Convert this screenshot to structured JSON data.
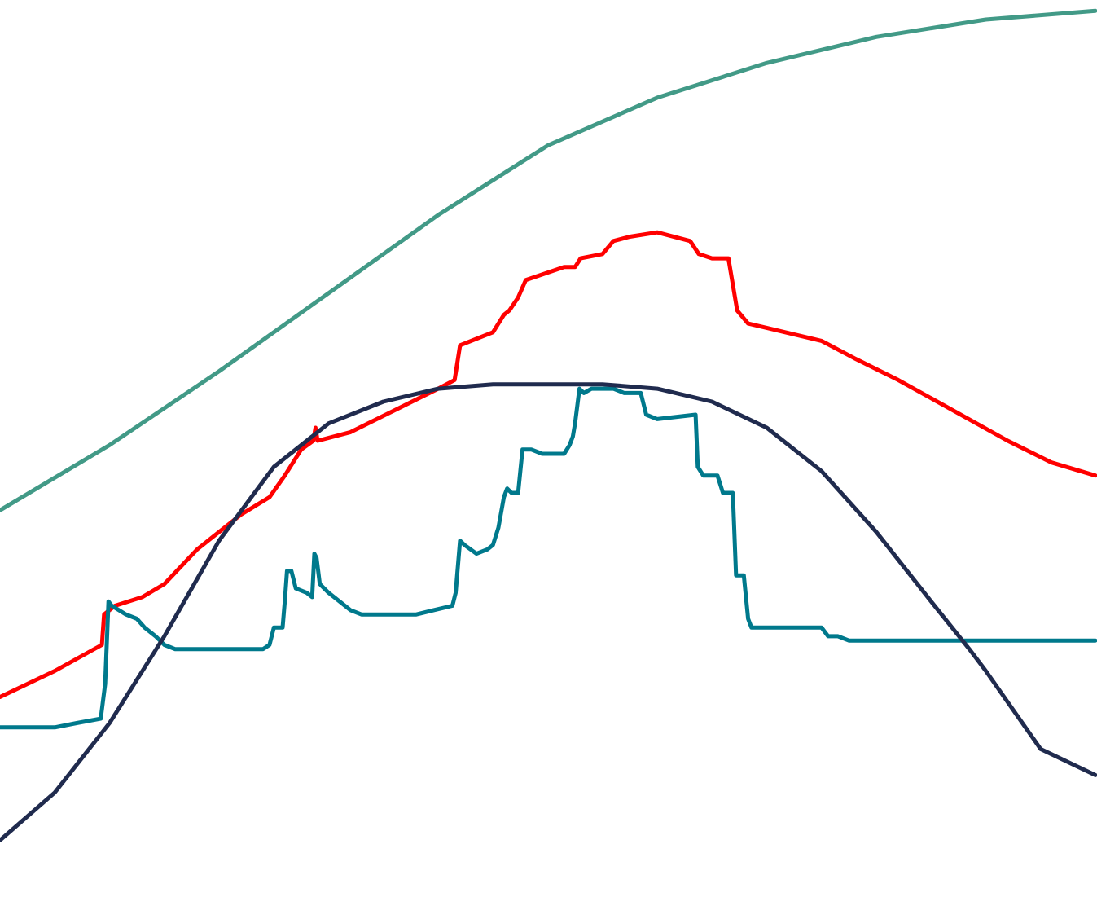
{
  "chart_data": {
    "type": "line",
    "title": "",
    "xlabel": "",
    "ylabel": "",
    "grid": false,
    "legend": "none",
    "xlim": [
      0,
      100
    ],
    "ylim": [
      0,
      100
    ],
    "series": [
      {
        "color": "#429a87",
        "points": [
          [
            0,
            43.5
          ],
          [
            10,
            51
          ],
          [
            20,
            59.5
          ],
          [
            30,
            68.5
          ],
          [
            40,
            77.5
          ],
          [
            50,
            85.5
          ],
          [
            60,
            91
          ],
          [
            70,
            95
          ],
          [
            80,
            98
          ],
          [
            90,
            100
          ],
          [
            100,
            101
          ]
        ]
      },
      {
        "color": "#ff0000",
        "points": [
          [
            0,
            22
          ],
          [
            5,
            25
          ],
          [
            9.3,
            28
          ],
          [
            9.5,
            31.5
          ],
          [
            10.5,
            32.5
          ],
          [
            13,
            33.5
          ],
          [
            15,
            35
          ],
          [
            18,
            39
          ],
          [
            22,
            43
          ],
          [
            24.6,
            45
          ],
          [
            26,
            47.5
          ],
          [
            27.5,
            50.5
          ],
          [
            28.6,
            51.5
          ],
          [
            28.8,
            53
          ],
          [
            29,
            51.5
          ],
          [
            32,
            52.5
          ],
          [
            36,
            55
          ],
          [
            40,
            57.5
          ],
          [
            41.5,
            58.5
          ],
          [
            42,
            62.5
          ],
          [
            45,
            64
          ],
          [
            46,
            66
          ],
          [
            46.5,
            66.5
          ],
          [
            47.3,
            68
          ],
          [
            48,
            70
          ],
          [
            51.5,
            71.5
          ],
          [
            52.5,
            71.5
          ],
          [
            53,
            72.5
          ],
          [
            55,
            73
          ],
          [
            56,
            74.5
          ],
          [
            57.5,
            75
          ],
          [
            60,
            75.5
          ],
          [
            63,
            74.5
          ],
          [
            63.8,
            73
          ],
          [
            65,
            72.5
          ],
          [
            66.5,
            72.5
          ],
          [
            67.3,
            66.5
          ],
          [
            68.3,
            65
          ],
          [
            70,
            64.5
          ],
          [
            75,
            63
          ],
          [
            78,
            61
          ],
          [
            82,
            58.5
          ],
          [
            87,
            55
          ],
          [
            92,
            51.5
          ],
          [
            96,
            49
          ],
          [
            100,
            47.5
          ]
        ]
      },
      {
        "color": "#00798c",
        "points": [
          [
            0,
            18.5
          ],
          [
            5,
            18.5
          ],
          [
            7,
            19
          ],
          [
            9.2,
            19.5
          ],
          [
            9.6,
            23.5
          ],
          [
            9.9,
            33
          ],
          [
            10.2,
            32.5
          ],
          [
            11.5,
            31.5
          ],
          [
            12.5,
            31
          ],
          [
            13.2,
            30
          ],
          [
            14.2,
            29
          ],
          [
            15,
            28
          ],
          [
            16,
            27.5
          ],
          [
            24,
            27.5
          ],
          [
            24.6,
            28
          ],
          [
            25,
            30
          ],
          [
            25.8,
            30
          ],
          [
            26,
            33
          ],
          [
            26.2,
            36.5
          ],
          [
            26.6,
            36.5
          ],
          [
            27,
            34.5
          ],
          [
            28,
            34
          ],
          [
            28.5,
            33.5
          ],
          [
            28.7,
            38.5
          ],
          [
            28.9,
            38
          ],
          [
            29.2,
            35
          ],
          [
            30,
            34
          ],
          [
            31,
            33
          ],
          [
            32,
            32
          ],
          [
            33,
            31.5
          ],
          [
            38,
            31.5
          ],
          [
            39.6,
            32
          ],
          [
            41.3,
            32.5
          ],
          [
            41.6,
            34
          ],
          [
            42,
            40
          ],
          [
            42.4,
            39.5
          ],
          [
            43.5,
            38.5
          ],
          [
            44.5,
            39
          ],
          [
            45,
            39.5
          ],
          [
            45.5,
            41.5
          ],
          [
            46,
            45
          ],
          [
            46.3,
            46
          ],
          [
            46.7,
            45.5
          ],
          [
            47.3,
            45.5
          ],
          [
            47.7,
            50.5
          ],
          [
            48.5,
            50.5
          ],
          [
            49.5,
            50
          ],
          [
            51.5,
            50
          ],
          [
            52,
            51
          ],
          [
            52.3,
            52
          ],
          [
            52.5,
            53.5
          ],
          [
            52.9,
            57.5
          ],
          [
            53.3,
            57
          ],
          [
            54,
            57.5
          ],
          [
            56,
            57.5
          ],
          [
            57,
            57
          ],
          [
            58.5,
            57
          ],
          [
            59,
            54.5
          ],
          [
            60,
            54
          ],
          [
            63.5,
            54.5
          ],
          [
            63.7,
            48.5
          ],
          [
            64.2,
            47.5
          ],
          [
            65.5,
            47.5
          ],
          [
            66,
            45.5
          ],
          [
            66.9,
            45.5
          ],
          [
            67.2,
            36
          ],
          [
            67.9,
            36
          ],
          [
            68.3,
            31
          ],
          [
            68.6,
            30
          ],
          [
            70,
            30
          ],
          [
            75,
            30
          ],
          [
            75.6,
            29
          ],
          [
            76.5,
            29
          ],
          [
            77.5,
            28.5
          ],
          [
            78.5,
            28.5
          ],
          [
            79,
            28.5
          ],
          [
            80,
            28.5
          ],
          [
            90,
            28.5
          ],
          [
            100,
            28.5
          ]
        ]
      },
      {
        "color": "#202b4e",
        "points": [
          [
            0,
            5.5
          ],
          [
            5,
            11
          ],
          [
            10,
            19
          ],
          [
            15,
            29
          ],
          [
            20,
            40
          ],
          [
            25,
            48.5
          ],
          [
            30,
            53.5
          ],
          [
            35,
            56
          ],
          [
            40,
            57.5
          ],
          [
            45,
            58
          ],
          [
            50,
            58
          ],
          [
            55,
            58
          ],
          [
            60,
            57.5
          ],
          [
            65,
            56
          ],
          [
            70,
            53
          ],
          [
            75,
            48
          ],
          [
            80,
            41
          ],
          [
            85,
            33
          ],
          [
            88.5,
            27.5
          ],
          [
            90,
            25
          ],
          [
            95,
            16
          ],
          [
            100,
            13
          ]
        ]
      }
    ]
  }
}
